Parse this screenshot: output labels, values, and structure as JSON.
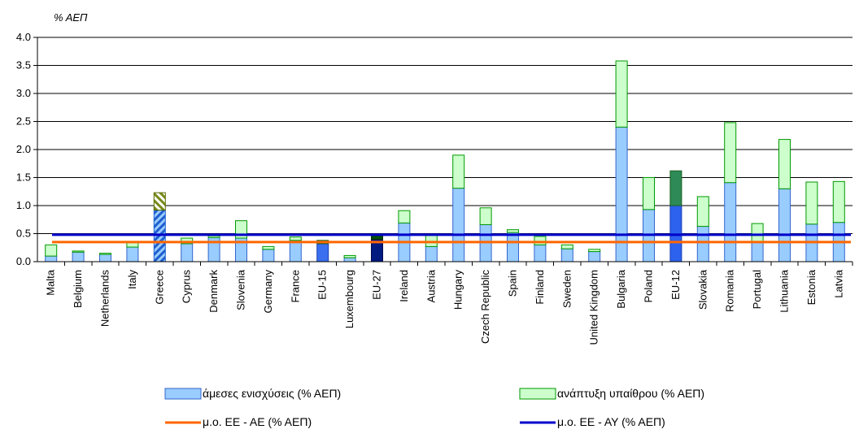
{
  "chart_data": {
    "type": "bar",
    "stacked": true,
    "title": "",
    "ylabel": "% ΑΕΠ",
    "xlabel": "",
    "ylim": [
      0,
      4.0
    ],
    "yticks": [
      "0.0",
      "0.5",
      "1.0",
      "1.5",
      "2.0",
      "2.5",
      "3.0",
      "3.5",
      "4.0"
    ],
    "grid": true,
    "legend_position": "bottom",
    "categories": [
      "Malta",
      "Belgium",
      "Netherlands",
      "Italy",
      "Greece",
      "Cyprus",
      "Denmark",
      "Slovenia",
      "Germany",
      "France",
      "EU-15",
      "Luxembourg",
      "EU-27",
      "Ireland",
      "Austria",
      "Hungary",
      "Czech Republic",
      "Spain",
      "Finland",
      "Sweden",
      "United Kingdom",
      "Bulgaria",
      "Poland",
      "EU-12",
      "Slovakia",
      "Romania",
      "Portugal",
      "Lithuania",
      "Estonia",
      "Latvia"
    ],
    "highlighted_categories": [
      "Greece",
      "EU-15",
      "EU-27",
      "EU-12"
    ],
    "series": [
      {
        "name": "άμεσες ενισχύσεις (% ΑΕΠ)",
        "color": "#99ccff",
        "edge": "#3366cc",
        "values": [
          0.1,
          0.17,
          0.13,
          0.26,
          0.92,
          0.32,
          0.43,
          0.42,
          0.22,
          0.38,
          0.32,
          0.07,
          0.4,
          0.69,
          0.27,
          1.31,
          0.66,
          0.52,
          0.3,
          0.23,
          0.18,
          2.4,
          0.93,
          1.0,
          0.63,
          1.41,
          0.35,
          1.3,
          0.67,
          0.7
        ]
      },
      {
        "name": "ανάπτυξη υπαίθρου (% ΑΕΠ)",
        "color": "#ccffcc",
        "edge": "#009900",
        "values": [
          0.2,
          0.02,
          0.02,
          0.08,
          0.31,
          0.1,
          0.03,
          0.31,
          0.05,
          0.06,
          0.06,
          0.04,
          0.09,
          0.22,
          0.2,
          0.59,
          0.3,
          0.05,
          0.15,
          0.07,
          0.04,
          1.18,
          0.57,
          0.62,
          0.53,
          1.07,
          0.33,
          0.88,
          0.75,
          0.73
        ]
      }
    ],
    "reference_lines": [
      {
        "name": "μ.ο. ΕΕ - ΑΕ (% ΑΕΠ)",
        "value": 0.35,
        "color": "#ff6600"
      },
      {
        "name": "μ.ο. ΕΕ - ΑΥ (% ΑΕΠ)",
        "value": 0.48,
        "color": "#0000cc"
      }
    ]
  }
}
